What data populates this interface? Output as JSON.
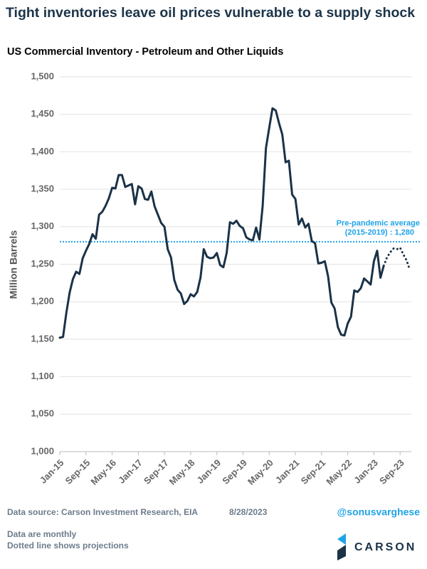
{
  "chart_data": {
    "type": "line",
    "title": "Tight inventories leave oil prices vulnerable to a supply shock",
    "subtitle": "US Commercial Inventory - Petroleum and Other Liquids",
    "y_label": "Million Barrels",
    "categories": [
      "Jan-15",
      null,
      null,
      null,
      null,
      null,
      null,
      null,
      "Sep-15",
      null,
      null,
      null,
      null,
      null,
      null,
      null,
      "May-16",
      null,
      null,
      null,
      null,
      null,
      null,
      null,
      "Jan-17",
      null,
      null,
      null,
      null,
      null,
      null,
      null,
      "Sep-17",
      null,
      null,
      null,
      null,
      null,
      null,
      null,
      "May-18",
      null,
      null,
      null,
      null,
      null,
      null,
      null,
      "Jan-19",
      null,
      null,
      null,
      null,
      null,
      null,
      null,
      "Sep-19",
      null,
      null,
      null,
      null,
      null,
      null,
      null,
      "May-20",
      null,
      null,
      null,
      null,
      null,
      null,
      null,
      "Jan-21",
      null,
      null,
      null,
      null,
      null,
      null,
      null,
      "Sep-21",
      null,
      null,
      null,
      null,
      null,
      null,
      null,
      "May-22",
      null,
      null,
      null,
      null,
      null,
      null,
      null,
      "Jan-23",
      null,
      null,
      null,
      null,
      null,
      null,
      null,
      "Sep-23",
      null,
      null,
      null
    ],
    "series": [
      {
        "color": "#1b3247",
        "style": "solid",
        "values": [
          1152,
          1153,
          1185,
          1212,
          1230,
          1240,
          1237,
          1258,
          1268,
          1277,
          1290,
          1284,
          1316,
          1320,
          1328,
          1338,
          1352,
          1351,
          1369,
          1369,
          1353,
          1355,
          1357,
          1330,
          1354,
          1351,
          1337,
          1336,
          1347,
          1327,
          1316,
          1305,
          1300,
          1270,
          1259,
          1229,
          1216,
          1211,
          1197,
          1201,
          1210,
          1207,
          1213,
          1232,
          1270,
          1260,
          1258,
          1259,
          1265,
          1249,
          1246,
          1265,
          1306,
          1304,
          1308,
          1301,
          1298,
          1286,
          1283,
          1282,
          1299,
          1283,
          1328,
          1405,
          1432,
          1458,
          1455,
          1438,
          1423,
          1386,
          1388,
          1343,
          1337,
          1303,
          1311,
          1299,
          1304,
          1281,
          1278,
          1251,
          1252,
          1254,
          1234,
          1199,
          1191,
          1166,
          1156,
          1155,
          1171,
          1180,
          1215,
          1213,
          1218,
          1231,
          1227,
          1223,
          1254,
          1268,
          1232,
          1248,
          null,
          null,
          null,
          null,
          null,
          null,
          null,
          null
        ]
      },
      {
        "color": "#1b3247",
        "style": "dotted",
        "values": [
          null,
          null,
          null,
          null,
          null,
          null,
          null,
          null,
          null,
          null,
          null,
          null,
          null,
          null,
          null,
          null,
          null,
          null,
          null,
          null,
          null,
          null,
          null,
          null,
          null,
          null,
          null,
          null,
          null,
          null,
          null,
          null,
          null,
          null,
          null,
          null,
          null,
          null,
          null,
          null,
          null,
          null,
          null,
          null,
          null,
          null,
          null,
          null,
          null,
          null,
          null,
          null,
          null,
          null,
          null,
          null,
          null,
          null,
          null,
          null,
          null,
          null,
          null,
          null,
          null,
          null,
          null,
          null,
          null,
          null,
          null,
          null,
          null,
          null,
          null,
          null,
          null,
          null,
          null,
          null,
          null,
          null,
          null,
          null,
          null,
          null,
          null,
          null,
          null,
          null,
          null,
          null,
          null,
          null,
          null,
          null,
          null,
          null,
          null,
          1248,
          1259,
          1266,
          1271,
          1270,
          1272,
          1263,
          1255,
          1242
        ]
      }
    ],
    "ylim": [
      1000,
      1500
    ],
    "yticks": [
      {
        "value": 1000,
        "label": "1,000"
      },
      {
        "value": 1050,
        "label": "1,050"
      },
      {
        "value": 1100,
        "label": "1,100"
      },
      {
        "value": 1150,
        "label": "1,150"
      },
      {
        "value": 1200,
        "label": "1,200"
      },
      {
        "value": 1250,
        "label": "1,250"
      },
      {
        "value": 1300,
        "label": "1,300"
      },
      {
        "value": 1350,
        "label": "1,350"
      },
      {
        "value": 1400,
        "label": "1,400"
      },
      {
        "value": 1450,
        "label": "1,450"
      },
      {
        "value": 1500,
        "label": "1,500"
      }
    ],
    "grid": true,
    "reference_line": {
      "value": 1280,
      "color": "#1fa3e8",
      "label": [
        "Pre-pandemic average",
        "(2015-2019) : 1,280"
      ]
    }
  },
  "footer": {
    "source": "Data source: Carson Investment Research, EIA",
    "date": "8/28/2023",
    "handle": "@sonusvarghese",
    "notes": [
      "Data are monthly",
      "Dotted line shows projections"
    ],
    "brand": "CARSON"
  }
}
